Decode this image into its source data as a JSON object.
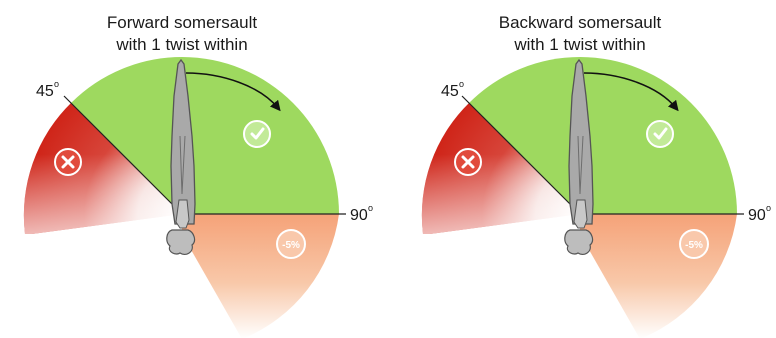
{
  "panels": [
    {
      "title_line1": "Forward somersault",
      "title_line2": "with 1 twist within",
      "angle_45": "45",
      "angle_90": "90",
      "degree_symbol": "o",
      "zone_valid_icon": "check-icon",
      "zone_invalid_icon": "x-icon",
      "zone_penalty_label": "-5%"
    },
    {
      "title_line1": "Backward somersault",
      "title_line2": "with 1 twist within",
      "angle_45": "45",
      "angle_90": "90",
      "degree_symbol": "o",
      "zone_valid_icon": "check-icon",
      "zone_invalid_icon": "x-icon",
      "zone_penalty_label": "-5%"
    }
  ],
  "colors": {
    "valid_zone": "#9ed95f",
    "invalid_zone": "#d42a1f",
    "penalty_zone": "#f6a87a",
    "figure_fill": "#a9a9a9",
    "figure_stroke": "#555555",
    "line": "#222222"
  }
}
